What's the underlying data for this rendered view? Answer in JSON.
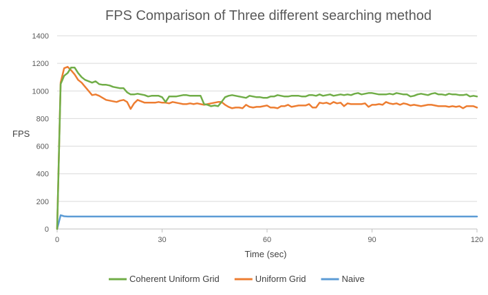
{
  "chart_data": {
    "type": "line",
    "title": "FPS Comparison of Three different searching method",
    "xlabel": "Time (sec)",
    "ylabel": "FPS",
    "xlim": [
      0,
      120
    ],
    "ylim": [
      0,
      1400
    ],
    "xticks": [
      0,
      30,
      60,
      90,
      120
    ],
    "yticks": [
      0,
      200,
      400,
      600,
      800,
      1000,
      1200,
      1400
    ],
    "grid": true,
    "legend_position": "bottom",
    "series": [
      {
        "name": "Coherent Uniform Grid",
        "color": "#70AD47",
        "x": [
          0,
          1,
          2,
          3,
          4,
          5,
          6,
          7,
          8,
          9,
          10,
          11,
          12,
          13,
          14,
          15,
          16,
          17,
          18,
          19,
          20,
          21,
          22,
          23,
          24,
          25,
          26,
          27,
          28,
          29,
          30,
          31,
          32,
          33,
          34,
          35,
          36,
          37,
          38,
          39,
          40,
          41,
          42,
          43,
          44,
          45,
          46,
          47,
          48,
          49,
          50,
          51,
          52,
          53,
          54,
          55,
          56,
          57,
          58,
          59,
          60,
          61,
          62,
          63,
          64,
          65,
          66,
          67,
          68,
          69,
          70,
          71,
          72,
          73,
          74,
          75,
          76,
          77,
          78,
          79,
          80,
          81,
          82,
          83,
          84,
          85,
          86,
          87,
          88,
          89,
          90,
          91,
          92,
          93,
          94,
          95,
          96,
          97,
          98,
          99,
          100,
          101,
          102,
          103,
          104,
          105,
          106,
          107,
          108,
          109,
          110,
          111,
          112,
          113,
          114,
          115,
          116,
          117,
          118,
          119,
          120
        ],
        "y": [
          0,
          1050,
          1110,
          1130,
          1170,
          1170,
          1130,
          1100,
          1080,
          1070,
          1060,
          1070,
          1050,
          1045,
          1045,
          1040,
          1030,
          1025,
          1020,
          1020,
          990,
          975,
          975,
          980,
          975,
          970,
          960,
          965,
          965,
          965,
          955,
          920,
          960,
          960,
          960,
          965,
          970,
          970,
          965,
          965,
          965,
          965,
          905,
          900,
          890,
          895,
          890,
          920,
          955,
          965,
          970,
          965,
          960,
          955,
          950,
          965,
          960,
          955,
          955,
          950,
          950,
          960,
          960,
          970,
          965,
          960,
          960,
          965,
          965,
          965,
          960,
          960,
          970,
          970,
          965,
          975,
          965,
          970,
          975,
          965,
          970,
          975,
          970,
          975,
          970,
          980,
          985,
          975,
          980,
          985,
          985,
          980,
          975,
          975,
          975,
          980,
          975,
          985,
          980,
          975,
          975,
          960,
          965,
          975,
          980,
          975,
          970,
          980,
          985,
          975,
          975,
          970,
          980,
          975,
          975,
          970,
          970,
          975,
          960,
          965,
          960
        ]
      },
      {
        "name": "Uniform Grid",
        "color": "#ED7D31",
        "x": [
          0,
          1,
          2,
          3,
          4,
          5,
          6,
          7,
          8,
          9,
          10,
          11,
          12,
          13,
          14,
          15,
          16,
          17,
          18,
          19,
          20,
          21,
          22,
          23,
          24,
          25,
          26,
          27,
          28,
          29,
          30,
          31,
          32,
          33,
          34,
          35,
          36,
          37,
          38,
          39,
          40,
          41,
          42,
          43,
          44,
          45,
          46,
          47,
          48,
          49,
          50,
          51,
          52,
          53,
          54,
          55,
          56,
          57,
          58,
          59,
          60,
          61,
          62,
          63,
          64,
          65,
          66,
          67,
          68,
          69,
          70,
          71,
          72,
          73,
          74,
          75,
          76,
          77,
          78,
          79,
          80,
          81,
          82,
          83,
          84,
          85,
          86,
          87,
          88,
          89,
          90,
          91,
          92,
          93,
          94,
          95,
          96,
          97,
          98,
          99,
          100,
          101,
          102,
          103,
          104,
          105,
          106,
          107,
          108,
          109,
          110,
          111,
          112,
          113,
          114,
          115,
          116,
          117,
          118,
          119,
          120
        ],
        "y": [
          0,
          1060,
          1165,
          1175,
          1150,
          1120,
          1080,
          1060,
          1030,
          1000,
          970,
          975,
          965,
          950,
          935,
          930,
          925,
          920,
          930,
          935,
          920,
          870,
          910,
          935,
          925,
          915,
          915,
          915,
          915,
          920,
          915,
          915,
          910,
          920,
          915,
          910,
          905,
          905,
          910,
          905,
          910,
          905,
          900,
          905,
          910,
          915,
          920,
          920,
          900,
          885,
          875,
          880,
          880,
          875,
          900,
          885,
          880,
          885,
          885,
          890,
          895,
          880,
          880,
          875,
          890,
          890,
          900,
          885,
          890,
          895,
          895,
          895,
          905,
          880,
          880,
          915,
          910,
          915,
          905,
          920,
          910,
          915,
          890,
          910,
          905,
          905,
          905,
          905,
          910,
          885,
          900,
          900,
          905,
          900,
          920,
          910,
          905,
          910,
          900,
          910,
          905,
          895,
          900,
          895,
          890,
          895,
          900,
          900,
          895,
          890,
          890,
          890,
          885,
          890,
          885,
          890,
          875,
          890,
          890,
          890,
          880
        ]
      },
      {
        "name": "Naive",
        "color": "#5B9BD5",
        "x": [
          0,
          1,
          2,
          3,
          4,
          5,
          10,
          20,
          30,
          40,
          50,
          60,
          70,
          80,
          90,
          100,
          110,
          120
        ],
        "y": [
          0,
          100,
          92,
          90,
          90,
          90,
          90,
          90,
          90,
          90,
          90,
          90,
          90,
          90,
          90,
          90,
          90,
          90
        ]
      }
    ]
  }
}
